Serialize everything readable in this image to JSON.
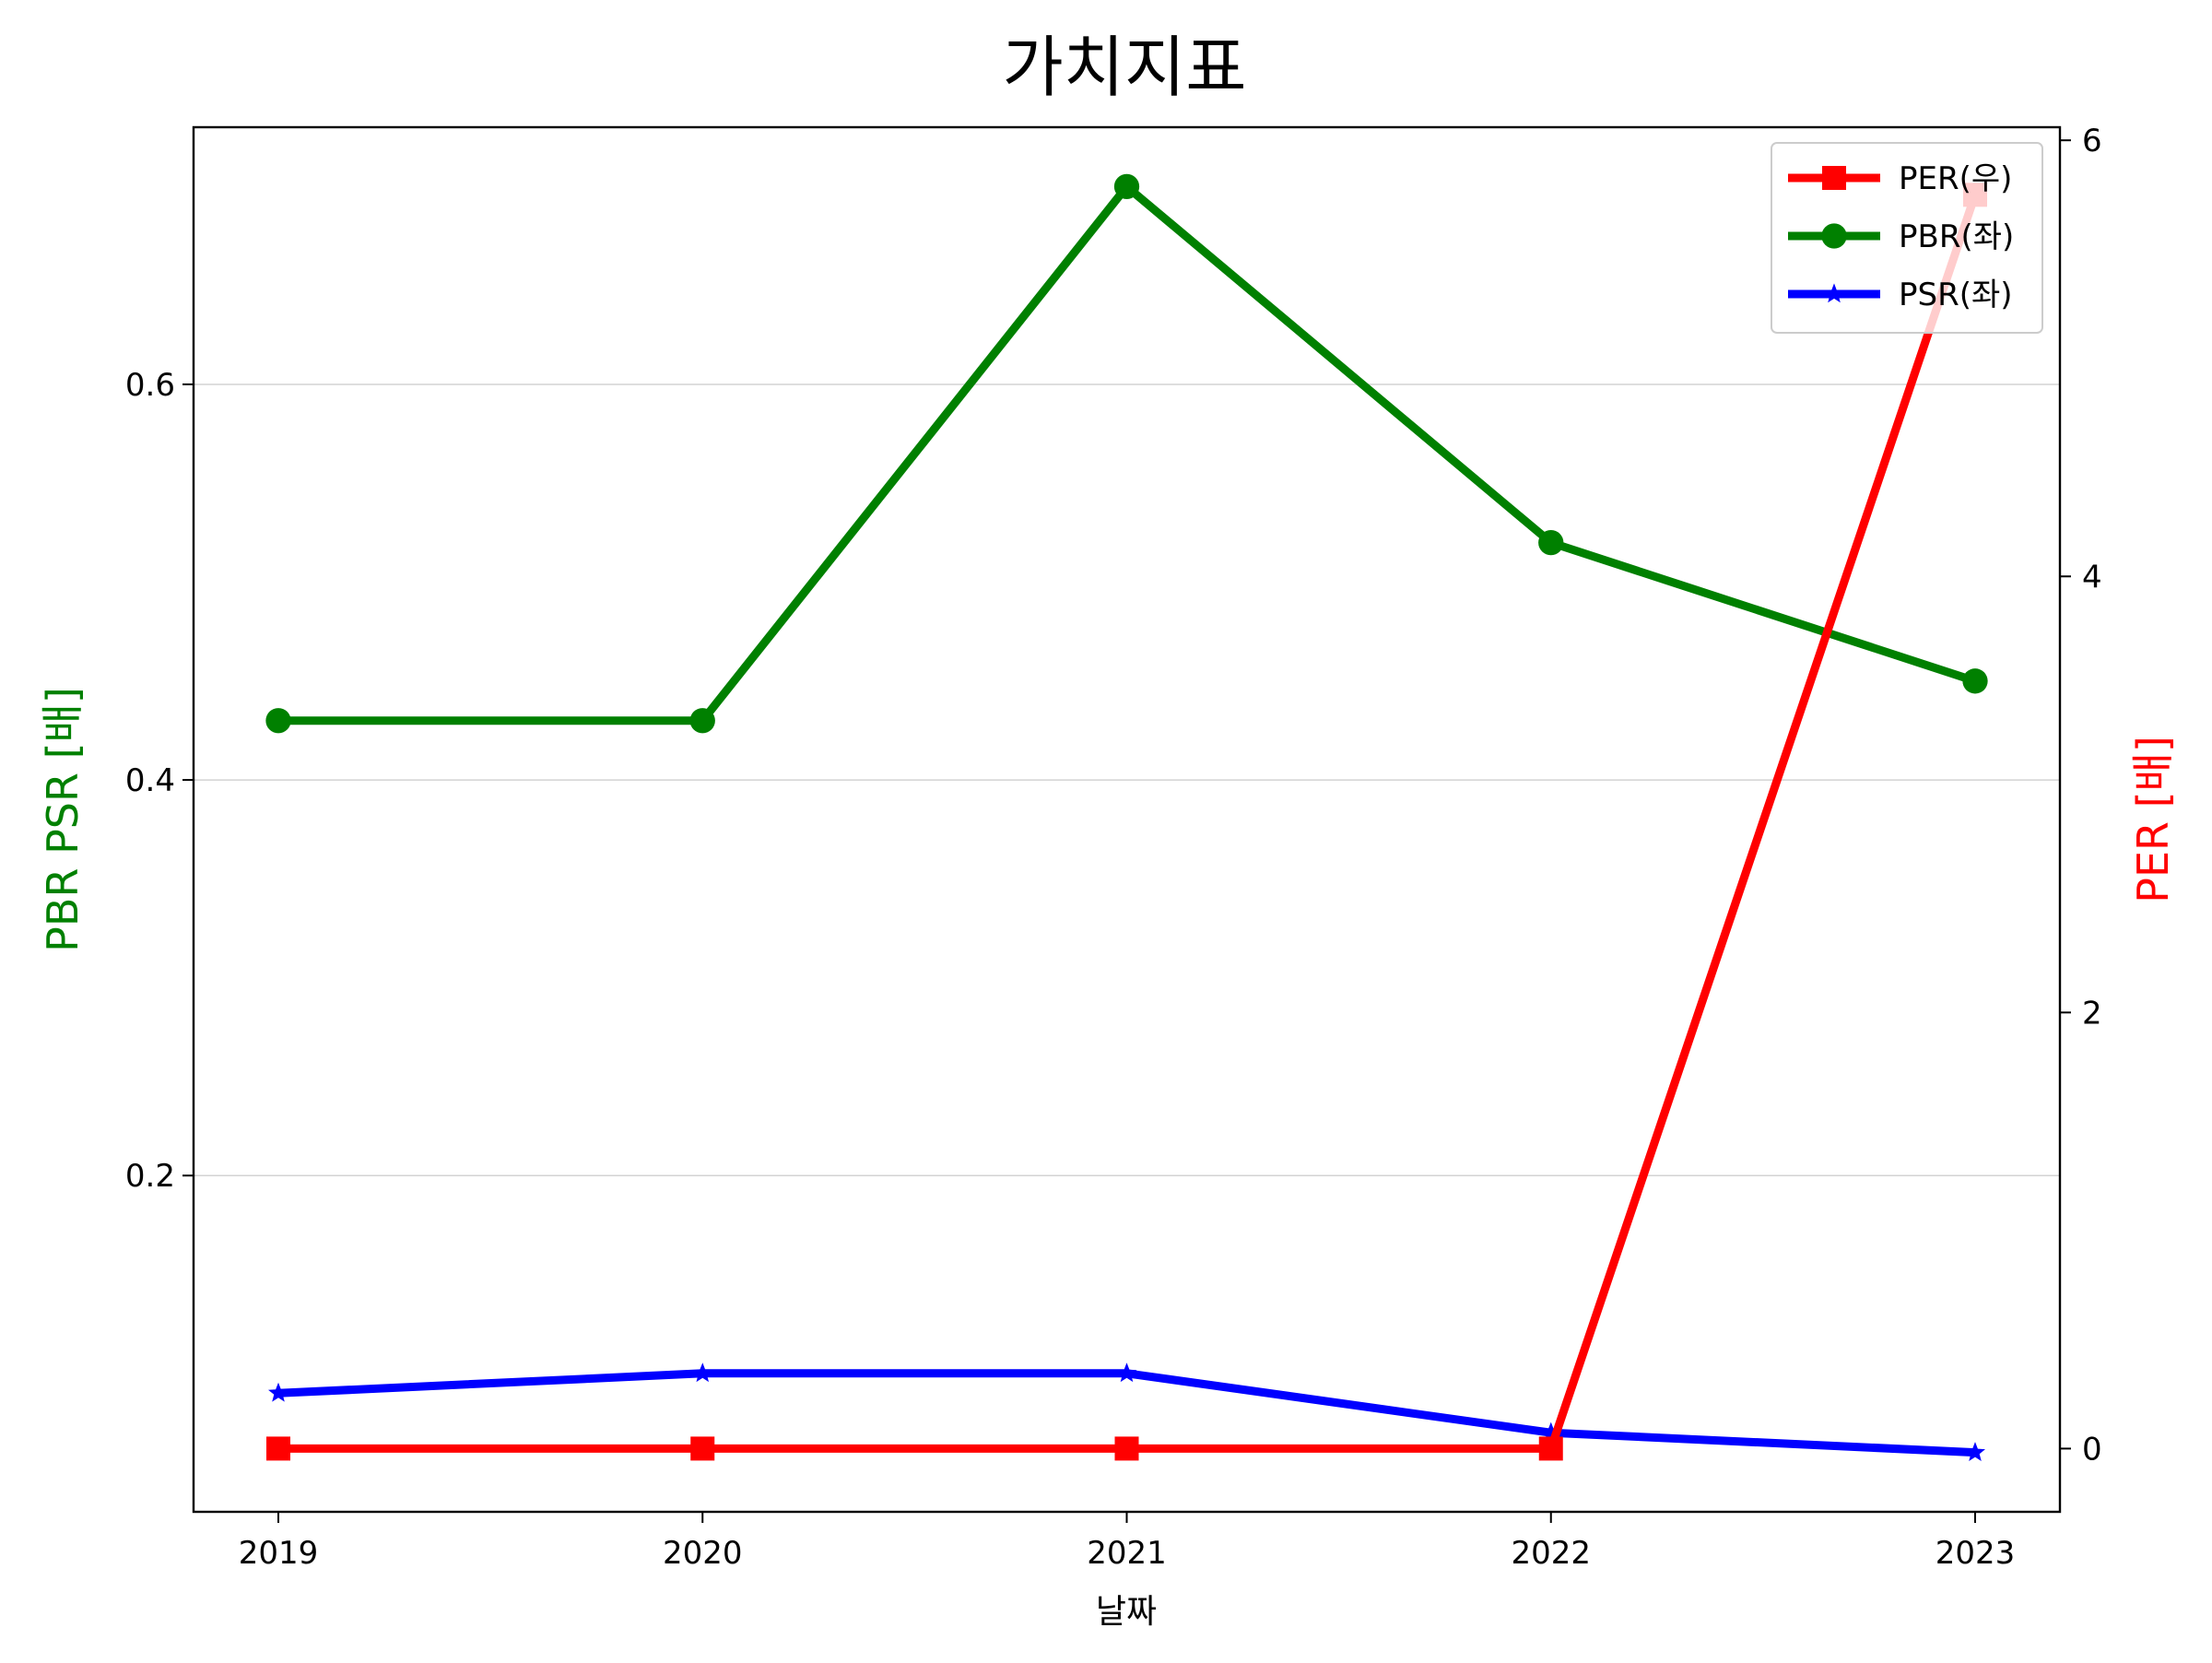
{
  "chart_data": {
    "type": "line",
    "title": "가치지표",
    "xlabel": "날짜",
    "ylabel_left": "PBR PSR [배]",
    "ylabel_right": "PER [배]",
    "categories": [
      "2019",
      "2020",
      "2021",
      "2022",
      "2023"
    ],
    "left_axis": {
      "ylim": [
        0.03,
        0.73
      ],
      "ticks": [
        0.2,
        0.4,
        0.6
      ],
      "tick_labels": [
        "0.2",
        "0.4",
        "0.6"
      ],
      "grid": true
    },
    "right_axis": {
      "ylim": [
        -0.29,
        6.06
      ],
      "ticks": [
        0,
        2,
        4,
        6
      ],
      "tick_labels": [
        "0",
        "2",
        "4",
        "6"
      ]
    },
    "series": [
      {
        "name": "PER(우)",
        "axis": "right",
        "color": "#ff0000",
        "marker": "square",
        "values": [
          0,
          0,
          0,
          0,
          5.75
        ]
      },
      {
        "name": "PBR(좌)",
        "axis": "left",
        "color": "#008000",
        "marker": "circle",
        "values": [
          0.43,
          0.43,
          0.7,
          0.52,
          0.45
        ]
      },
      {
        "name": "PSR(좌)",
        "axis": "left",
        "color": "#0000ff",
        "marker": "star",
        "values": [
          0.09,
          0.1,
          0.1,
          0.07,
          0.06
        ]
      }
    ],
    "legend_position": "top-right",
    "colors": {
      "left_label": "#008000",
      "right_label": "#ff0000",
      "grid": "#d3d3d3",
      "axis": "#000000"
    }
  }
}
